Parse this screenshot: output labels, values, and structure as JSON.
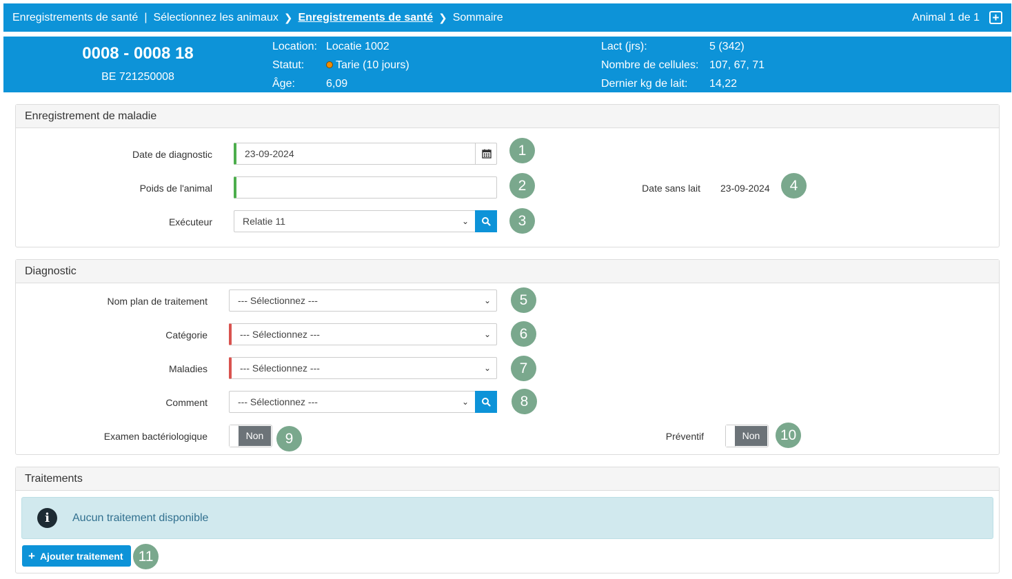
{
  "breadcrumb": {
    "items": [
      "Enregistrements de santé",
      "Sélectionnez les animaux",
      "Enregistrements de santé",
      "Sommaire"
    ],
    "separator": "|",
    "animal_counter": "Animal 1 de 1"
  },
  "animal": {
    "id": "0008 - 0008 18",
    "be": "BE 721250008",
    "location_label": "Location:",
    "location_value": "Locatie 1002",
    "status_label": "Statut:",
    "status_value": "Tarie (10 jours)",
    "age_label": "Âge:",
    "age_value": "6,09",
    "lact_label": "Lact (jrs):",
    "lact_value": "5 (342)",
    "cells_label": "Nombre de cellules:",
    "cells_value": "107, 67, 71",
    "milk_label": "Dernier kg de lait:",
    "milk_value": "14,22",
    "status_color": "#f08c00"
  },
  "disease": {
    "title": "Enregistrement de maladie",
    "date_label": "Date de diagnostic",
    "date_value": "23-09-2024",
    "weight_label": "Poids de l'animal",
    "weight_value": "",
    "executor_label": "Exécuteur",
    "executor_value": "Relatie 11",
    "milkfree_label": "Date sans lait",
    "milkfree_value": "23-09-2024"
  },
  "diagnostic": {
    "title": "Diagnostic",
    "plan_label": "Nom plan de traitement",
    "plan_value": "--- Sélectionnez ---",
    "category_label": "Catégorie",
    "category_value": "--- Sélectionnez ---",
    "diseases_label": "Maladies",
    "diseases_value": "--- Sélectionnez ---",
    "comment_label": "Comment",
    "comment_value": "--- Sélectionnez ---",
    "bacterio_label": "Examen bactériologique",
    "bacterio_value": "Non",
    "preventive_label": "Préventif",
    "preventive_value": "Non"
  },
  "treatments": {
    "title": "Traitements",
    "empty_message": "Aucun traitement disponible",
    "add_label": "Ajouter traitement"
  },
  "badges": [
    "1",
    "2",
    "3",
    "4",
    "5",
    "6",
    "7",
    "8",
    "9",
    "10",
    "11"
  ],
  "colors": {
    "brand_blue": "#0d93d8",
    "badge_green": "#7aa88d",
    "valid_green": "#4cae4c",
    "required_red": "#d9534f",
    "alert_bg": "#d1e9ee"
  }
}
